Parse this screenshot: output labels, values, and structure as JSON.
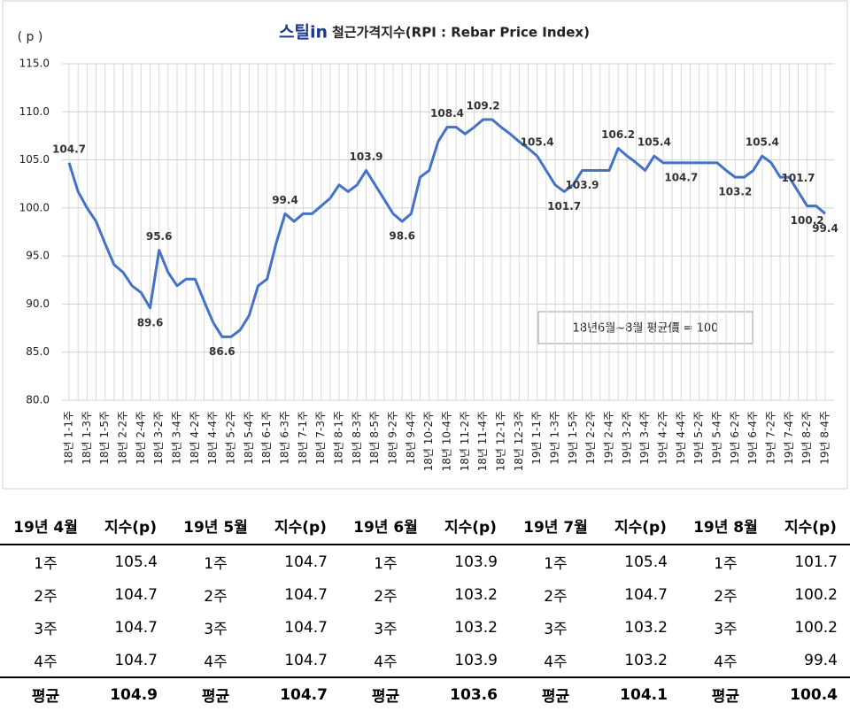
{
  "chart_data": {
    "type": "line",
    "title_logo": "스틸in",
    "title": "철근가격지수(RPI : Rebar Price Index)",
    "y_label": "( p )",
    "annotation": "18년6월~8월 평균價 = 100",
    "categories": [
      "18년 1-1주",
      null,
      "18년 1-3주",
      null,
      "18년 1-5주",
      null,
      "18년 2-2주",
      null,
      "18년 2-4주",
      null,
      "18년 3-2주",
      null,
      "18년 3-4주",
      null,
      "18년 4-2주",
      null,
      "18년 4-4주",
      null,
      "18년 5-2주",
      null,
      "18년 5-4주",
      null,
      "18년 6-1주",
      null,
      "18년 6-3주",
      null,
      "18년 7-1주",
      null,
      "18년 7-3주",
      null,
      "18년 8-1주",
      null,
      "18년 8-3주",
      null,
      "18년 8-5주",
      null,
      "18년 9-2주",
      null,
      "18년 9-4주",
      null,
      "18년 10-2주",
      null,
      "18년 10-4주",
      null,
      "18년 11-2주",
      null,
      "18년 11-4주",
      null,
      "18년 12-1주",
      null,
      "18년 12-3주",
      null,
      "19년 1-1주",
      null,
      "19년 1-3주",
      null,
      "19년 1-5주",
      null,
      "19년 2-2주",
      null,
      "19년 2-4주",
      null,
      "19년 3-2주",
      null,
      "19년 3-4주",
      null,
      "19년 4-2주",
      null,
      "19년 4-4주",
      null,
      "19년 5-2주",
      null,
      "19년 5-4주",
      null,
      "19년 6-2주",
      null,
      "19년 6-4주",
      null,
      "19년 7-2주",
      null,
      "19년 7-4주",
      null,
      "19년 8-2주",
      null,
      "19년 8-4주"
    ],
    "values": [
      104.7,
      101.7,
      100,
      98.6,
      96.3,
      94.1,
      93.3,
      91.9,
      91.2,
      89.6,
      95.6,
      93.3,
      91.9,
      92.6,
      92.6,
      90.3,
      88.1,
      86.6,
      86.6,
      87.3,
      88.8,
      91.9,
      92.6,
      96.3,
      99.4,
      98.6,
      99.4,
      99.4,
      100.2,
      101,
      102.4,
      101.7,
      102.4,
      103.9,
      102.4,
      100.9,
      99.4,
      98.6,
      99.4,
      103.2,
      103.9,
      106.9,
      108.4,
      108.4,
      107.7,
      108.4,
      109.2,
      109.2,
      108.4,
      107.7,
      106.9,
      106.2,
      105.4,
      103.9,
      102.4,
      101.7,
      102.4,
      103.9,
      103.9,
      103.9,
      103.9,
      106.2,
      105.4,
      104.7,
      103.9,
      105.4,
      104.7,
      104.7,
      104.7,
      104.7,
      104.7,
      104.7,
      104.7,
      103.9,
      103.2,
      103.2,
      103.9,
      105.4,
      104.7,
      103.2,
      103.2,
      101.7,
      100.2,
      100.2,
      99.4
    ],
    "color": "#4472c4",
    "ylim": [
      80,
      115
    ],
    "yticks": [
      {
        "value": 80,
        "label": "80.0"
      },
      {
        "value": 85,
        "label": "85.0"
      },
      {
        "value": 90,
        "label": "90.0"
      },
      {
        "value": 95,
        "label": "95.0"
      },
      {
        "value": 100,
        "label": "100.0"
      },
      {
        "value": 105,
        "label": "105.0"
      },
      {
        "value": 110,
        "label": "110.0"
      },
      {
        "value": 115,
        "label": "115.0"
      }
    ],
    "grid": true,
    "labeled_points": [
      {
        "index": 0,
        "position": "above"
      },
      {
        "index": 9,
        "position": "below"
      },
      {
        "index": 10,
        "position": "above"
      },
      {
        "index": 17,
        "position": "below"
      },
      {
        "index": 24,
        "position": "above"
      },
      {
        "index": 33,
        "position": "above"
      },
      {
        "index": 37,
        "position": "below"
      },
      {
        "index": 42,
        "position": "above"
      },
      {
        "index": 46,
        "position": "above"
      },
      {
        "index": 52,
        "position": "above"
      },
      {
        "index": 55,
        "position": "below"
      },
      {
        "index": 57,
        "position": "below"
      },
      {
        "index": 61,
        "position": "above"
      },
      {
        "index": 65,
        "position": "above"
      },
      {
        "index": 68,
        "position": "below"
      },
      {
        "index": 74,
        "position": "below"
      },
      {
        "index": 77,
        "position": "above"
      },
      {
        "index": 81,
        "position": "above"
      },
      {
        "index": 82,
        "position": "below"
      },
      {
        "index": 84,
        "position": "below"
      }
    ]
  },
  "table": {
    "header": [
      "19년 4월",
      "지수(p)",
      "19년 5월",
      "지수(p)",
      "19년 6월",
      "지수(p)",
      "19년 7월",
      "지수(p)",
      "19년 8월",
      "지수(p)"
    ],
    "rows": [
      [
        "1주",
        105.4,
        "1주",
        104.7,
        "1주",
        103.9,
        "1주",
        105.4,
        "1주",
        101.7
      ],
      [
        "2주",
        104.7,
        "2주",
        104.7,
        "2주",
        103.2,
        "2주",
        104.7,
        "2주",
        100.2
      ],
      [
        "3주",
        104.7,
        "3주",
        104.7,
        "3주",
        103.2,
        "3주",
        103.2,
        "3주",
        100.2
      ],
      [
        "4주",
        104.7,
        "4주",
        104.7,
        "4주",
        103.9,
        "4주",
        103.2,
        "4주",
        99.4
      ]
    ],
    "footer": [
      "평균",
      104.9,
      "평균",
      104.7,
      "평균",
      103.6,
      "평균",
      104.1,
      "평균",
      100.4
    ]
  }
}
